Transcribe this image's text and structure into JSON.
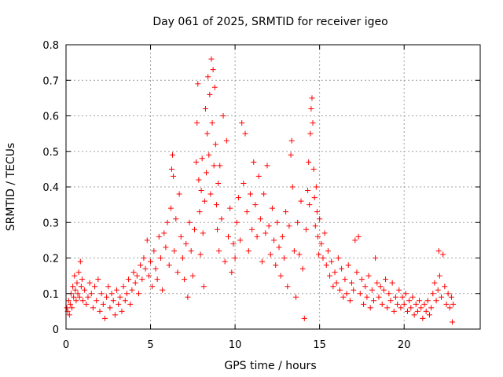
{
  "chart_data": {
    "type": "scatter",
    "title": "Day 061 of 2025, SRMTID for receiver igeo",
    "xlabel": "GPS time / hours",
    "ylabel": "SRMTID / TECUs",
    "xlim": [
      0,
      24.5
    ],
    "ylim": [
      0,
      0.8
    ],
    "grid": true,
    "marker": "+",
    "x_ticks": [
      {
        "value": 0,
        "label": "0"
      },
      {
        "value": 5,
        "label": "5"
      },
      {
        "value": 10,
        "label": "10"
      },
      {
        "value": 15,
        "label": "15"
      },
      {
        "value": 20,
        "label": "20"
      }
    ],
    "y_ticks": [
      {
        "value": 0,
        "label": "0"
      },
      {
        "value": 0.1,
        "label": "0.1"
      },
      {
        "value": 0.2,
        "label": "0.2"
      },
      {
        "value": 0.3,
        "label": "0.3"
      },
      {
        "value": 0.4,
        "label": "0.4"
      },
      {
        "value": 0.5,
        "label": "0.5"
      },
      {
        "value": 0.6,
        "label": "0.6"
      },
      {
        "value": 0.7,
        "label": "0.7"
      },
      {
        "value": 0.8,
        "label": "0.8"
      }
    ],
    "series": [
      {
        "name": "SRMTID",
        "color": "#ff0000",
        "points": [
          [
            0.05,
            0.06
          ],
          [
            0.1,
            0.05
          ],
          [
            0.15,
            0.08
          ],
          [
            0.2,
            0.04
          ],
          [
            0.25,
            0.07
          ],
          [
            0.3,
            0.1
          ],
          [
            0.35,
            0.06
          ],
          [
            0.4,
            0.12
          ],
          [
            0.45,
            0.09
          ],
          [
            0.5,
            0.15
          ],
          [
            0.55,
            0.11
          ],
          [
            0.6,
            0.08
          ],
          [
            0.65,
            0.13
          ],
          [
            0.7,
            0.1
          ],
          [
            0.75,
            0.16
          ],
          [
            0.8,
            0.09
          ],
          [
            0.85,
            0.19
          ],
          [
            0.9,
            0.12
          ],
          [
            0.95,
            0.14
          ],
          [
            1.0,
            0.08
          ],
          [
            1.1,
            0.11
          ],
          [
            1.2,
            0.07
          ],
          [
            1.3,
            0.09
          ],
          [
            1.4,
            0.13
          ],
          [
            1.5,
            0.1
          ],
          [
            1.6,
            0.06
          ],
          [
            1.7,
            0.12
          ],
          [
            1.8,
            0.08
          ],
          [
            1.9,
            0.14
          ],
          [
            2.0,
            0.05
          ],
          [
            2.1,
            0.1
          ],
          [
            2.2,
            0.07
          ],
          [
            2.3,
            0.03
          ],
          [
            2.4,
            0.09
          ],
          [
            2.5,
            0.12
          ],
          [
            2.6,
            0.06
          ],
          [
            2.7,
            0.1
          ],
          [
            2.8,
            0.08
          ],
          [
            2.9,
            0.04
          ],
          [
            3.0,
            0.11
          ],
          [
            3.1,
            0.07
          ],
          [
            3.2,
            0.09
          ],
          [
            3.3,
            0.05
          ],
          [
            3.4,
            0.12
          ],
          [
            3.5,
            0.08
          ],
          [
            3.6,
            0.1
          ],
          [
            3.7,
            0.14
          ],
          [
            3.8,
            0.07
          ],
          [
            3.9,
            0.11
          ],
          [
            4.0,
            0.16
          ],
          [
            4.1,
            0.13
          ],
          [
            4.2,
            0.15
          ],
          [
            4.3,
            0.1
          ],
          [
            4.4,
            0.18
          ],
          [
            4.5,
            0.14
          ],
          [
            4.6,
            0.2
          ],
          [
            4.7,
            0.17
          ],
          [
            4.8,
            0.25
          ],
          [
            4.9,
            0.15
          ],
          [
            5.0,
            0.19
          ],
          [
            5.1,
            0.12
          ],
          [
            5.2,
            0.22
          ],
          [
            5.3,
            0.17
          ],
          [
            5.4,
            0.14
          ],
          [
            5.5,
            0.26
          ],
          [
            5.6,
            0.2
          ],
          [
            5.7,
            0.11
          ],
          [
            5.8,
            0.27
          ],
          [
            5.9,
            0.23
          ],
          [
            6.0,
            0.3
          ],
          [
            6.1,
            0.18
          ],
          [
            6.2,
            0.34
          ],
          [
            6.25,
            0.45
          ],
          [
            6.3,
            0.49
          ],
          [
            6.35,
            0.43
          ],
          [
            6.4,
            0.22
          ],
          [
            6.5,
            0.31
          ],
          [
            6.6,
            0.16
          ],
          [
            6.7,
            0.38
          ],
          [
            6.8,
            0.26
          ],
          [
            6.9,
            0.2
          ],
          [
            7.0,
            0.14
          ],
          [
            7.1,
            0.24
          ],
          [
            7.2,
            0.09
          ],
          [
            7.3,
            0.3
          ],
          [
            7.4,
            0.22
          ],
          [
            7.5,
            0.15
          ],
          [
            7.6,
            0.28
          ],
          [
            7.7,
            0.47
          ],
          [
            7.75,
            0.58
          ],
          [
            7.8,
            0.69
          ],
          [
            7.85,
            0.42
          ],
          [
            7.9,
            0.33
          ],
          [
            7.95,
            0.21
          ],
          [
            8.0,
            0.39
          ],
          [
            8.05,
            0.48
          ],
          [
            8.1,
            0.27
          ],
          [
            8.15,
            0.12
          ],
          [
            8.2,
            0.36
          ],
          [
            8.25,
            0.62
          ],
          [
            8.3,
            0.44
          ],
          [
            8.35,
            0.55
          ],
          [
            8.4,
            0.71
          ],
          [
            8.45,
            0.49
          ],
          [
            8.5,
            0.66
          ],
          [
            8.55,
            0.38
          ],
          [
            8.6,
            0.76
          ],
          [
            8.65,
            0.58
          ],
          [
            8.7,
            0.73
          ],
          [
            8.75,
            0.46
          ],
          [
            8.8,
            0.68
          ],
          [
            8.85,
            0.52
          ],
          [
            8.9,
            0.35
          ],
          [
            8.95,
            0.28
          ],
          [
            9.0,
            0.41
          ],
          [
            9.05,
            0.22
          ],
          [
            9.1,
            0.46
          ],
          [
            9.2,
            0.31
          ],
          [
            9.3,
            0.6
          ],
          [
            9.4,
            0.19
          ],
          [
            9.5,
            0.53
          ],
          [
            9.6,
            0.26
          ],
          [
            9.7,
            0.34
          ],
          [
            9.8,
            0.16
          ],
          [
            9.9,
            0.24
          ],
          [
            10.0,
            0.2
          ],
          [
            10.1,
            0.3
          ],
          [
            10.2,
            0.37
          ],
          [
            10.3,
            0.25
          ],
          [
            10.4,
            0.58
          ],
          [
            10.5,
            0.41
          ],
          [
            10.6,
            0.55
          ],
          [
            10.7,
            0.33
          ],
          [
            10.8,
            0.22
          ],
          [
            10.9,
            0.38
          ],
          [
            11.0,
            0.28
          ],
          [
            11.1,
            0.47
          ],
          [
            11.2,
            0.35
          ],
          [
            11.3,
            0.26
          ],
          [
            11.4,
            0.43
          ],
          [
            11.5,
            0.31
          ],
          [
            11.6,
            0.19
          ],
          [
            11.7,
            0.38
          ],
          [
            11.8,
            0.27
          ],
          [
            11.9,
            0.46
          ],
          [
            12.0,
            0.29
          ],
          [
            12.1,
            0.21
          ],
          [
            12.2,
            0.34
          ],
          [
            12.3,
            0.25
          ],
          [
            12.4,
            0.18
          ],
          [
            12.5,
            0.3
          ],
          [
            12.6,
            0.23
          ],
          [
            12.7,
            0.15
          ],
          [
            12.8,
            0.26
          ],
          [
            12.9,
            0.2
          ],
          [
            13.0,
            0.33
          ],
          [
            13.1,
            0.12
          ],
          [
            13.2,
            0.29
          ],
          [
            13.3,
            0.49
          ],
          [
            13.35,
            0.53
          ],
          [
            13.4,
            0.4
          ],
          [
            13.5,
            0.22
          ],
          [
            13.6,
            0.09
          ],
          [
            13.7,
            0.3
          ],
          [
            13.8,
            0.21
          ],
          [
            13.9,
            0.36
          ],
          [
            14.0,
            0.17
          ],
          [
            14.1,
            0.03
          ],
          [
            14.2,
            0.28
          ],
          [
            14.3,
            0.39
          ],
          [
            14.35,
            0.47
          ],
          [
            14.4,
            0.35
          ],
          [
            14.45,
            0.55
          ],
          [
            14.5,
            0.62
          ],
          [
            14.55,
            0.65
          ],
          [
            14.6,
            0.58
          ],
          [
            14.65,
            0.45
          ],
          [
            14.7,
            0.37
          ],
          [
            14.75,
            0.29
          ],
          [
            14.8,
            0.4
          ],
          [
            14.85,
            0.33
          ],
          [
            14.9,
            0.26
          ],
          [
            14.95,
            0.21
          ],
          [
            15.0,
            0.31
          ],
          [
            15.1,
            0.24
          ],
          [
            15.2,
            0.2
          ],
          [
            15.3,
            0.27
          ],
          [
            15.4,
            0.18
          ],
          [
            15.5,
            0.22
          ],
          [
            15.6,
            0.15
          ],
          [
            15.7,
            0.19
          ],
          [
            15.8,
            0.12
          ],
          [
            15.9,
            0.16
          ],
          [
            16.0,
            0.13
          ],
          [
            16.1,
            0.2
          ],
          [
            16.2,
            0.11
          ],
          [
            16.3,
            0.17
          ],
          [
            16.4,
            0.09
          ],
          [
            16.5,
            0.14
          ],
          [
            16.6,
            0.1
          ],
          [
            16.7,
            0.18
          ],
          [
            16.8,
            0.08
          ],
          [
            16.9,
            0.13
          ],
          [
            17.0,
            0.11
          ],
          [
            17.1,
            0.25
          ],
          [
            17.2,
            0.16
          ],
          [
            17.3,
            0.26
          ],
          [
            17.4,
            0.1
          ],
          [
            17.5,
            0.14
          ],
          [
            17.6,
            0.07
          ],
          [
            17.7,
            0.12
          ],
          [
            17.8,
            0.09
          ],
          [
            17.9,
            0.15
          ],
          [
            18.0,
            0.06
          ],
          [
            18.1,
            0.11
          ],
          [
            18.2,
            0.08
          ],
          [
            18.3,
            0.2
          ],
          [
            18.4,
            0.13
          ],
          [
            18.5,
            0.09
          ],
          [
            18.6,
            0.12
          ],
          [
            18.7,
            0.07
          ],
          [
            18.8,
            0.11
          ],
          [
            18.9,
            0.14
          ],
          [
            19.0,
            0.06
          ],
          [
            19.1,
            0.1
          ],
          [
            19.2,
            0.08
          ],
          [
            19.3,
            0.13
          ],
          [
            19.4,
            0.05
          ],
          [
            19.5,
            0.09
          ],
          [
            19.6,
            0.07
          ],
          [
            19.7,
            0.11
          ],
          [
            19.8,
            0.06
          ],
          [
            19.9,
            0.09
          ],
          [
            20.0,
            0.07
          ],
          [
            20.1,
            0.1
          ],
          [
            20.2,
            0.05
          ],
          [
            20.3,
            0.08
          ],
          [
            20.4,
            0.06
          ],
          [
            20.5,
            0.09
          ],
          [
            20.6,
            0.04
          ],
          [
            20.7,
            0.07
          ],
          [
            20.8,
            0.05
          ],
          [
            20.9,
            0.08
          ],
          [
            21.0,
            0.06
          ],
          [
            21.1,
            0.03
          ],
          [
            21.2,
            0.07
          ],
          [
            21.3,
            0.05
          ],
          [
            21.4,
            0.08
          ],
          [
            21.5,
            0.04
          ],
          [
            21.6,
            0.06
          ],
          [
            21.7,
            0.1
          ],
          [
            21.8,
            0.13
          ],
          [
            21.9,
            0.08
          ],
          [
            22.0,
            0.11
          ],
          [
            22.05,
            0.22
          ],
          [
            22.1,
            0.15
          ],
          [
            22.2,
            0.09
          ],
          [
            22.3,
            0.21
          ],
          [
            22.4,
            0.12
          ],
          [
            22.5,
            0.07
          ],
          [
            22.6,
            0.1
          ],
          [
            22.7,
            0.06
          ],
          [
            22.8,
            0.09
          ],
          [
            22.85,
            0.02
          ],
          [
            22.9,
            0.07
          ]
        ]
      }
    ]
  }
}
